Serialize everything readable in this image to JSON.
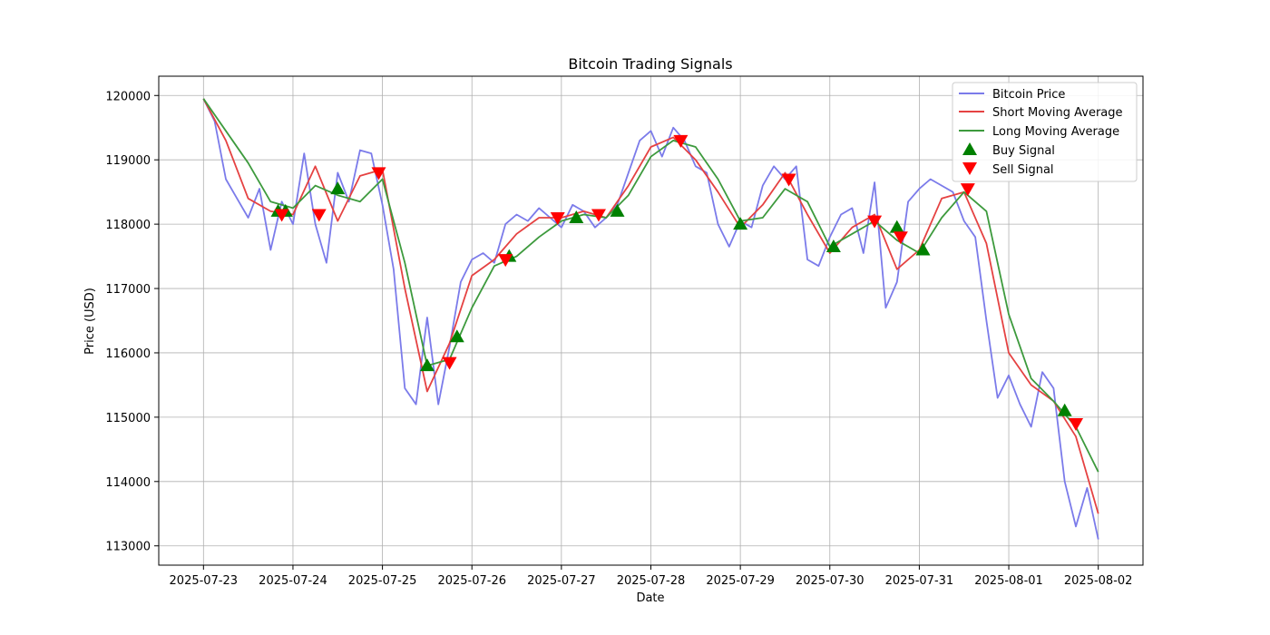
{
  "chart_data": {
    "type": "line",
    "title": "Bitcoin Trading Signals",
    "xlabel": "Date",
    "ylabel": "Price (USD)",
    "x_ticks": [
      "2025-07-23",
      "2025-07-24",
      "2025-07-25",
      "2025-07-26",
      "2025-07-27",
      "2025-07-28",
      "2025-07-29",
      "2025-07-30",
      "2025-07-31",
      "2025-08-01",
      "2025-08-02"
    ],
    "y_ticks": [
      113000,
      114000,
      115000,
      116000,
      117000,
      118000,
      119000,
      120000
    ],
    "xlim": [
      "2025-07-22T12:00",
      "2025-08-02T12:00"
    ],
    "ylim": [
      112700,
      120300
    ],
    "grid": true,
    "legend_position": "top-right",
    "colors": {
      "price": "#7b7bea",
      "short_ma": "#e54242",
      "long_ma": "#3d9a3d",
      "buy": "#008000",
      "sell": "#ff0000"
    },
    "series": [
      {
        "name": "Bitcoin Price",
        "points": [
          [
            "2025-07-23T00:00",
            119950
          ],
          [
            "2025-07-23T03:00",
            119600
          ],
          [
            "2025-07-23T06:00",
            118700
          ],
          [
            "2025-07-23T09:00",
            118400
          ],
          [
            "2025-07-23T12:00",
            118100
          ],
          [
            "2025-07-23T15:00",
            118550
          ],
          [
            "2025-07-23T18:00",
            117600
          ],
          [
            "2025-07-23T21:00",
            118350
          ],
          [
            "2025-07-24T00:00",
            118000
          ],
          [
            "2025-07-24T03:00",
            119100
          ],
          [
            "2025-07-24T06:00",
            118000
          ],
          [
            "2025-07-24T09:00",
            117400
          ],
          [
            "2025-07-24T12:00",
            118800
          ],
          [
            "2025-07-24T15:00",
            118350
          ],
          [
            "2025-07-24T18:00",
            119150
          ],
          [
            "2025-07-24T21:00",
            119100
          ],
          [
            "2025-07-25T00:00",
            118300
          ],
          [
            "2025-07-25T03:00",
            117300
          ],
          [
            "2025-07-25T06:00",
            115450
          ],
          [
            "2025-07-25T09:00",
            115200
          ],
          [
            "2025-07-25T12:00",
            116550
          ],
          [
            "2025-07-25T15:00",
            115200
          ],
          [
            "2025-07-25T18:00",
            116100
          ],
          [
            "2025-07-25T21:00",
            117100
          ],
          [
            "2025-07-26T00:00",
            117450
          ],
          [
            "2025-07-26T03:00",
            117550
          ],
          [
            "2025-07-26T06:00",
            117400
          ],
          [
            "2025-07-26T09:00",
            118000
          ],
          [
            "2025-07-26T12:00",
            118150
          ],
          [
            "2025-07-26T15:00",
            118050
          ],
          [
            "2025-07-26T18:00",
            118250
          ],
          [
            "2025-07-26T21:00",
            118100
          ],
          [
            "2025-07-27T00:00",
            117950
          ],
          [
            "2025-07-27T03:00",
            118300
          ],
          [
            "2025-07-27T06:00",
            118200
          ],
          [
            "2025-07-27T09:00",
            117950
          ],
          [
            "2025-07-27T12:00",
            118100
          ],
          [
            "2025-07-27T15:00",
            118300
          ],
          [
            "2025-07-27T18:00",
            118800
          ],
          [
            "2025-07-27T21:00",
            119300
          ],
          [
            "2025-07-28T00:00",
            119450
          ],
          [
            "2025-07-28T03:00",
            119050
          ],
          [
            "2025-07-28T06:00",
            119500
          ],
          [
            "2025-07-28T09:00",
            119300
          ],
          [
            "2025-07-28T12:00",
            118900
          ],
          [
            "2025-07-28T15:00",
            118800
          ],
          [
            "2025-07-28T18:00",
            118000
          ],
          [
            "2025-07-28T21:00",
            117650
          ],
          [
            "2025-07-29T00:00",
            118050
          ],
          [
            "2025-07-29T03:00",
            117950
          ],
          [
            "2025-07-29T06:00",
            118600
          ],
          [
            "2025-07-29T09:00",
            118900
          ],
          [
            "2025-07-29T12:00",
            118700
          ],
          [
            "2025-07-29T15:00",
            118900
          ],
          [
            "2025-07-29T18:00",
            117450
          ],
          [
            "2025-07-29T21:00",
            117350
          ],
          [
            "2025-07-30T00:00",
            117800
          ],
          [
            "2025-07-30T03:00",
            118150
          ],
          [
            "2025-07-30T06:00",
            118250
          ],
          [
            "2025-07-30T09:00",
            117550
          ],
          [
            "2025-07-30T12:00",
            118650
          ],
          [
            "2025-07-30T15:00",
            116700
          ],
          [
            "2025-07-30T18:00",
            117100
          ],
          [
            "2025-07-30T21:00",
            118350
          ],
          [
            "2025-07-31T00:00",
            118550
          ],
          [
            "2025-07-31T03:00",
            118700
          ],
          [
            "2025-07-31T06:00",
            118600
          ],
          [
            "2025-07-31T09:00",
            118500
          ],
          [
            "2025-07-31T12:00",
            118050
          ],
          [
            "2025-07-31T15:00",
            117800
          ],
          [
            "2025-07-31T18:00",
            116500
          ],
          [
            "2025-07-31T21:00",
            115300
          ],
          [
            "2025-08-01T00:00",
            115650
          ],
          [
            "2025-08-01T03:00",
            115200
          ],
          [
            "2025-08-01T06:00",
            114850
          ],
          [
            "2025-08-01T09:00",
            115700
          ],
          [
            "2025-08-01T12:00",
            115450
          ],
          [
            "2025-08-01T15:00",
            114000
          ],
          [
            "2025-08-01T18:00",
            113300
          ],
          [
            "2025-08-01T21:00",
            113900
          ],
          [
            "2025-08-02T00:00",
            113100
          ]
        ]
      },
      {
        "name": "Short Moving Average",
        "points": [
          [
            "2025-07-23T00:00",
            119950
          ],
          [
            "2025-07-23T06:00",
            119300
          ],
          [
            "2025-07-23T12:00",
            118400
          ],
          [
            "2025-07-23T18:00",
            118200
          ],
          [
            "2025-07-24T00:00",
            118150
          ],
          [
            "2025-07-24T06:00",
            118900
          ],
          [
            "2025-07-24T12:00",
            118050
          ],
          [
            "2025-07-24T18:00",
            118750
          ],
          [
            "2025-07-25T00:00",
            118850
          ],
          [
            "2025-07-25T06:00",
            117000
          ],
          [
            "2025-07-25T12:00",
            115400
          ],
          [
            "2025-07-25T18:00",
            116150
          ],
          [
            "2025-07-26T00:00",
            117200
          ],
          [
            "2025-07-26T06:00",
            117450
          ],
          [
            "2025-07-26T12:00",
            117850
          ],
          [
            "2025-07-26T18:00",
            118100
          ],
          [
            "2025-07-27T00:00",
            118100
          ],
          [
            "2025-07-27T06:00",
            118200
          ],
          [
            "2025-07-27T12:00",
            118100
          ],
          [
            "2025-07-27T18:00",
            118600
          ],
          [
            "2025-07-28T00:00",
            119200
          ],
          [
            "2025-07-28T06:00",
            119350
          ],
          [
            "2025-07-28T12:00",
            119000
          ],
          [
            "2025-07-28T18:00",
            118500
          ],
          [
            "2025-07-29T00:00",
            117950
          ],
          [
            "2025-07-29T06:00",
            118300
          ],
          [
            "2025-07-29T12:00",
            118800
          ],
          [
            "2025-07-29T18:00",
            118150
          ],
          [
            "2025-07-30T00:00",
            117550
          ],
          [
            "2025-07-30T06:00",
            117950
          ],
          [
            "2025-07-30T12:00",
            118150
          ],
          [
            "2025-07-30T18:00",
            117300
          ],
          [
            "2025-07-31T00:00",
            117600
          ],
          [
            "2025-07-31T06:00",
            118400
          ],
          [
            "2025-07-31T12:00",
            118500
          ],
          [
            "2025-07-31T18:00",
            117700
          ],
          [
            "2025-08-01T00:00",
            116000
          ],
          [
            "2025-08-01T06:00",
            115500
          ],
          [
            "2025-08-01T12:00",
            115250
          ],
          [
            "2025-08-01T18:00",
            114700
          ],
          [
            "2025-08-02T00:00",
            113500
          ]
        ]
      },
      {
        "name": "Long Moving Average",
        "points": [
          [
            "2025-07-23T00:00",
            119950
          ],
          [
            "2025-07-23T06:00",
            119450
          ],
          [
            "2025-07-23T12:00",
            118950
          ],
          [
            "2025-07-23T18:00",
            118350
          ],
          [
            "2025-07-24T00:00",
            118250
          ],
          [
            "2025-07-24T06:00",
            118600
          ],
          [
            "2025-07-24T12:00",
            118450
          ],
          [
            "2025-07-24T18:00",
            118350
          ],
          [
            "2025-07-25T00:00",
            118700
          ],
          [
            "2025-07-25T06:00",
            117400
          ],
          [
            "2025-07-25T12:00",
            115800
          ],
          [
            "2025-07-25T18:00",
            115900
          ],
          [
            "2025-07-26T00:00",
            116700
          ],
          [
            "2025-07-26T06:00",
            117350
          ],
          [
            "2025-07-26T12:00",
            117500
          ],
          [
            "2025-07-26T18:00",
            117800
          ],
          [
            "2025-07-27T00:00",
            118050
          ],
          [
            "2025-07-27T06:00",
            118150
          ],
          [
            "2025-07-27T12:00",
            118100
          ],
          [
            "2025-07-27T18:00",
            118450
          ],
          [
            "2025-07-28T00:00",
            119050
          ],
          [
            "2025-07-28T06:00",
            119300
          ],
          [
            "2025-07-28T12:00",
            119200
          ],
          [
            "2025-07-28T18:00",
            118700
          ],
          [
            "2025-07-29T00:00",
            118050
          ],
          [
            "2025-07-29T06:00",
            118100
          ],
          [
            "2025-07-29T12:00",
            118550
          ],
          [
            "2025-07-29T18:00",
            118350
          ],
          [
            "2025-07-30T00:00",
            117650
          ],
          [
            "2025-07-30T06:00",
            117850
          ],
          [
            "2025-07-30T12:00",
            118050
          ],
          [
            "2025-07-30T18:00",
            117750
          ],
          [
            "2025-07-31T00:00",
            117550
          ],
          [
            "2025-07-31T06:00",
            118100
          ],
          [
            "2025-07-31T12:00",
            118500
          ],
          [
            "2025-07-31T18:00",
            118200
          ],
          [
            "2025-08-01T00:00",
            116600
          ],
          [
            "2025-08-01T06:00",
            115600
          ],
          [
            "2025-08-01T12:00",
            115250
          ],
          [
            "2025-08-01T18:00",
            114850
          ],
          [
            "2025-08-02T00:00",
            114150
          ]
        ]
      }
    ],
    "buy_signals": {
      "name": "Buy Signal",
      "points": [
        [
          "2025-07-23T20:00",
          118200
        ],
        [
          "2025-07-23T22:00",
          118200
        ],
        [
          "2025-07-24T12:00",
          118550
        ],
        [
          "2025-07-25T12:00",
          115800
        ],
        [
          "2025-07-25T20:00",
          116250
        ],
        [
          "2025-07-26T10:00",
          117500
        ],
        [
          "2025-07-27T04:00",
          118100
        ],
        [
          "2025-07-27T15:00",
          118200
        ],
        [
          "2025-07-29T00:00",
          118000
        ],
        [
          "2025-07-30T01:00",
          117650
        ],
        [
          "2025-07-30T18:00",
          117950
        ],
        [
          "2025-07-31T01:00",
          117600
        ],
        [
          "2025-08-01T15:00",
          115100
        ]
      ]
    },
    "sell_signals": {
      "name": "Sell Signal",
      "points": [
        [
          "2025-07-23T21:00",
          118150
        ],
        [
          "2025-07-24T07:00",
          118150
        ],
        [
          "2025-07-24T23:00",
          118800
        ],
        [
          "2025-07-25T18:00",
          115850
        ],
        [
          "2025-07-26T09:00",
          117450
        ],
        [
          "2025-07-26T23:00",
          118100
        ],
        [
          "2025-07-27T10:00",
          118150
        ],
        [
          "2025-07-28T08:00",
          119300
        ],
        [
          "2025-07-29T13:00",
          118700
        ],
        [
          "2025-07-30T12:00",
          118050
        ],
        [
          "2025-07-30T19:00",
          117800
        ],
        [
          "2025-07-31T13:00",
          118550
        ],
        [
          "2025-08-01T18:00",
          114900
        ]
      ]
    }
  }
}
